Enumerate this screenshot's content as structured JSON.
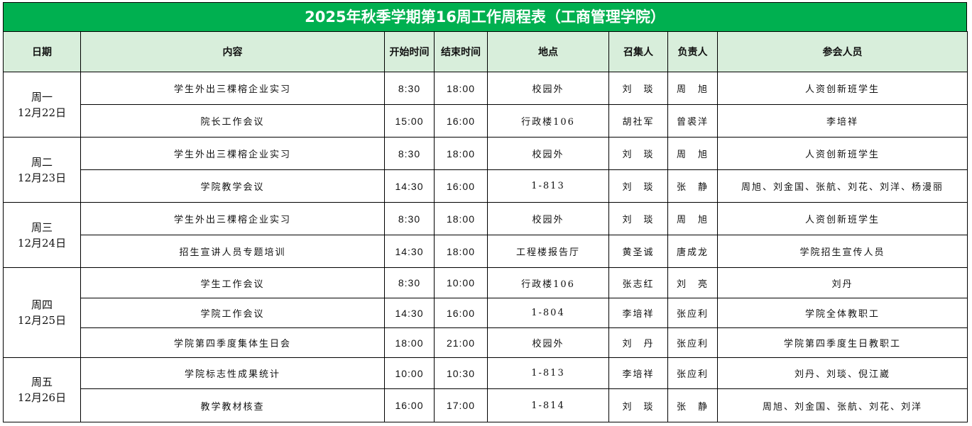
{
  "title": "2025年秋季学期第16周工作周程表（工商管理学院）",
  "headers": [
    "日期",
    "内容",
    "开始时间",
    "结束时间",
    "地点",
    "召集人",
    "负责人",
    "参会人员"
  ],
  "days": [
    {
      "day": "周一",
      "date": "12月22日",
      "rows": [
        [
          "学生外出三棵榕企业实习",
          "8:30",
          "18:00",
          "校园外",
          "刘　琰",
          "周　旭",
          "人资创新班学生"
        ],
        [
          "院长工作会议",
          "15:00",
          "16:00",
          "行政楼106",
          "胡社军",
          "曾裘洋",
          "李培祥"
        ]
      ]
    },
    {
      "day": "周二",
      "date": "12月23日",
      "rows": [
        [
          "学生外出三棵榕企业实习",
          "8:30",
          "18:00",
          "校园外",
          "刘　琰",
          "周　旭",
          "人资创新班学生"
        ],
        [
          "学院教学会议",
          "14:30",
          "16:00",
          "1-813",
          "刘　琰",
          "张　静",
          "周旭、刘金国、张航、刘花、刘洋、杨漫丽"
        ]
      ]
    },
    {
      "day": "周三",
      "date": "12月24日",
      "rows": [
        [
          "学生外出三棵榕企业实习",
          "8:30",
          "18:00",
          "校园外",
          "刘　琰",
          "周　旭",
          "人资创新班学生"
        ],
        [
          "招生宣讲人员专题培训",
          "14:30",
          "18:00",
          "工程楼报告厅",
          "黄圣诚",
          "唐成龙",
          "学院招生宣传人员"
        ]
      ]
    },
    {
      "day": "周四",
      "date": "12月25日",
      "rows": [
        [
          "学生工作会议",
          "8:30",
          "10:00",
          "行政楼106",
          "张志红",
          "刘　亮",
          "刘丹"
        ],
        [
          "学院工作会议",
          "14:30",
          "16:00",
          "1-804",
          "李培祥",
          "张应利",
          "学院全体教职工"
        ],
        [
          "学院第四季度集体生日会",
          "18:00",
          "21:00",
          "校园外",
          "刘　丹",
          "张应利",
          "学院第四季度生日教职工"
        ]
      ]
    },
    {
      "day": "周五",
      "date": "12月26日",
      "rows": [
        [
          "学院标志性成果统计",
          "10:00",
          "10:30",
          "1-813",
          "李培祥",
          "张应利",
          "刘丹、刘琰、倪江崴"
        ],
        [
          "教学教材核查",
          "16:00",
          "17:00",
          "1-814",
          "刘　琰",
          "张　静",
          "周旭、刘金国、张航、刘花、刘洋"
        ]
      ]
    }
  ]
}
